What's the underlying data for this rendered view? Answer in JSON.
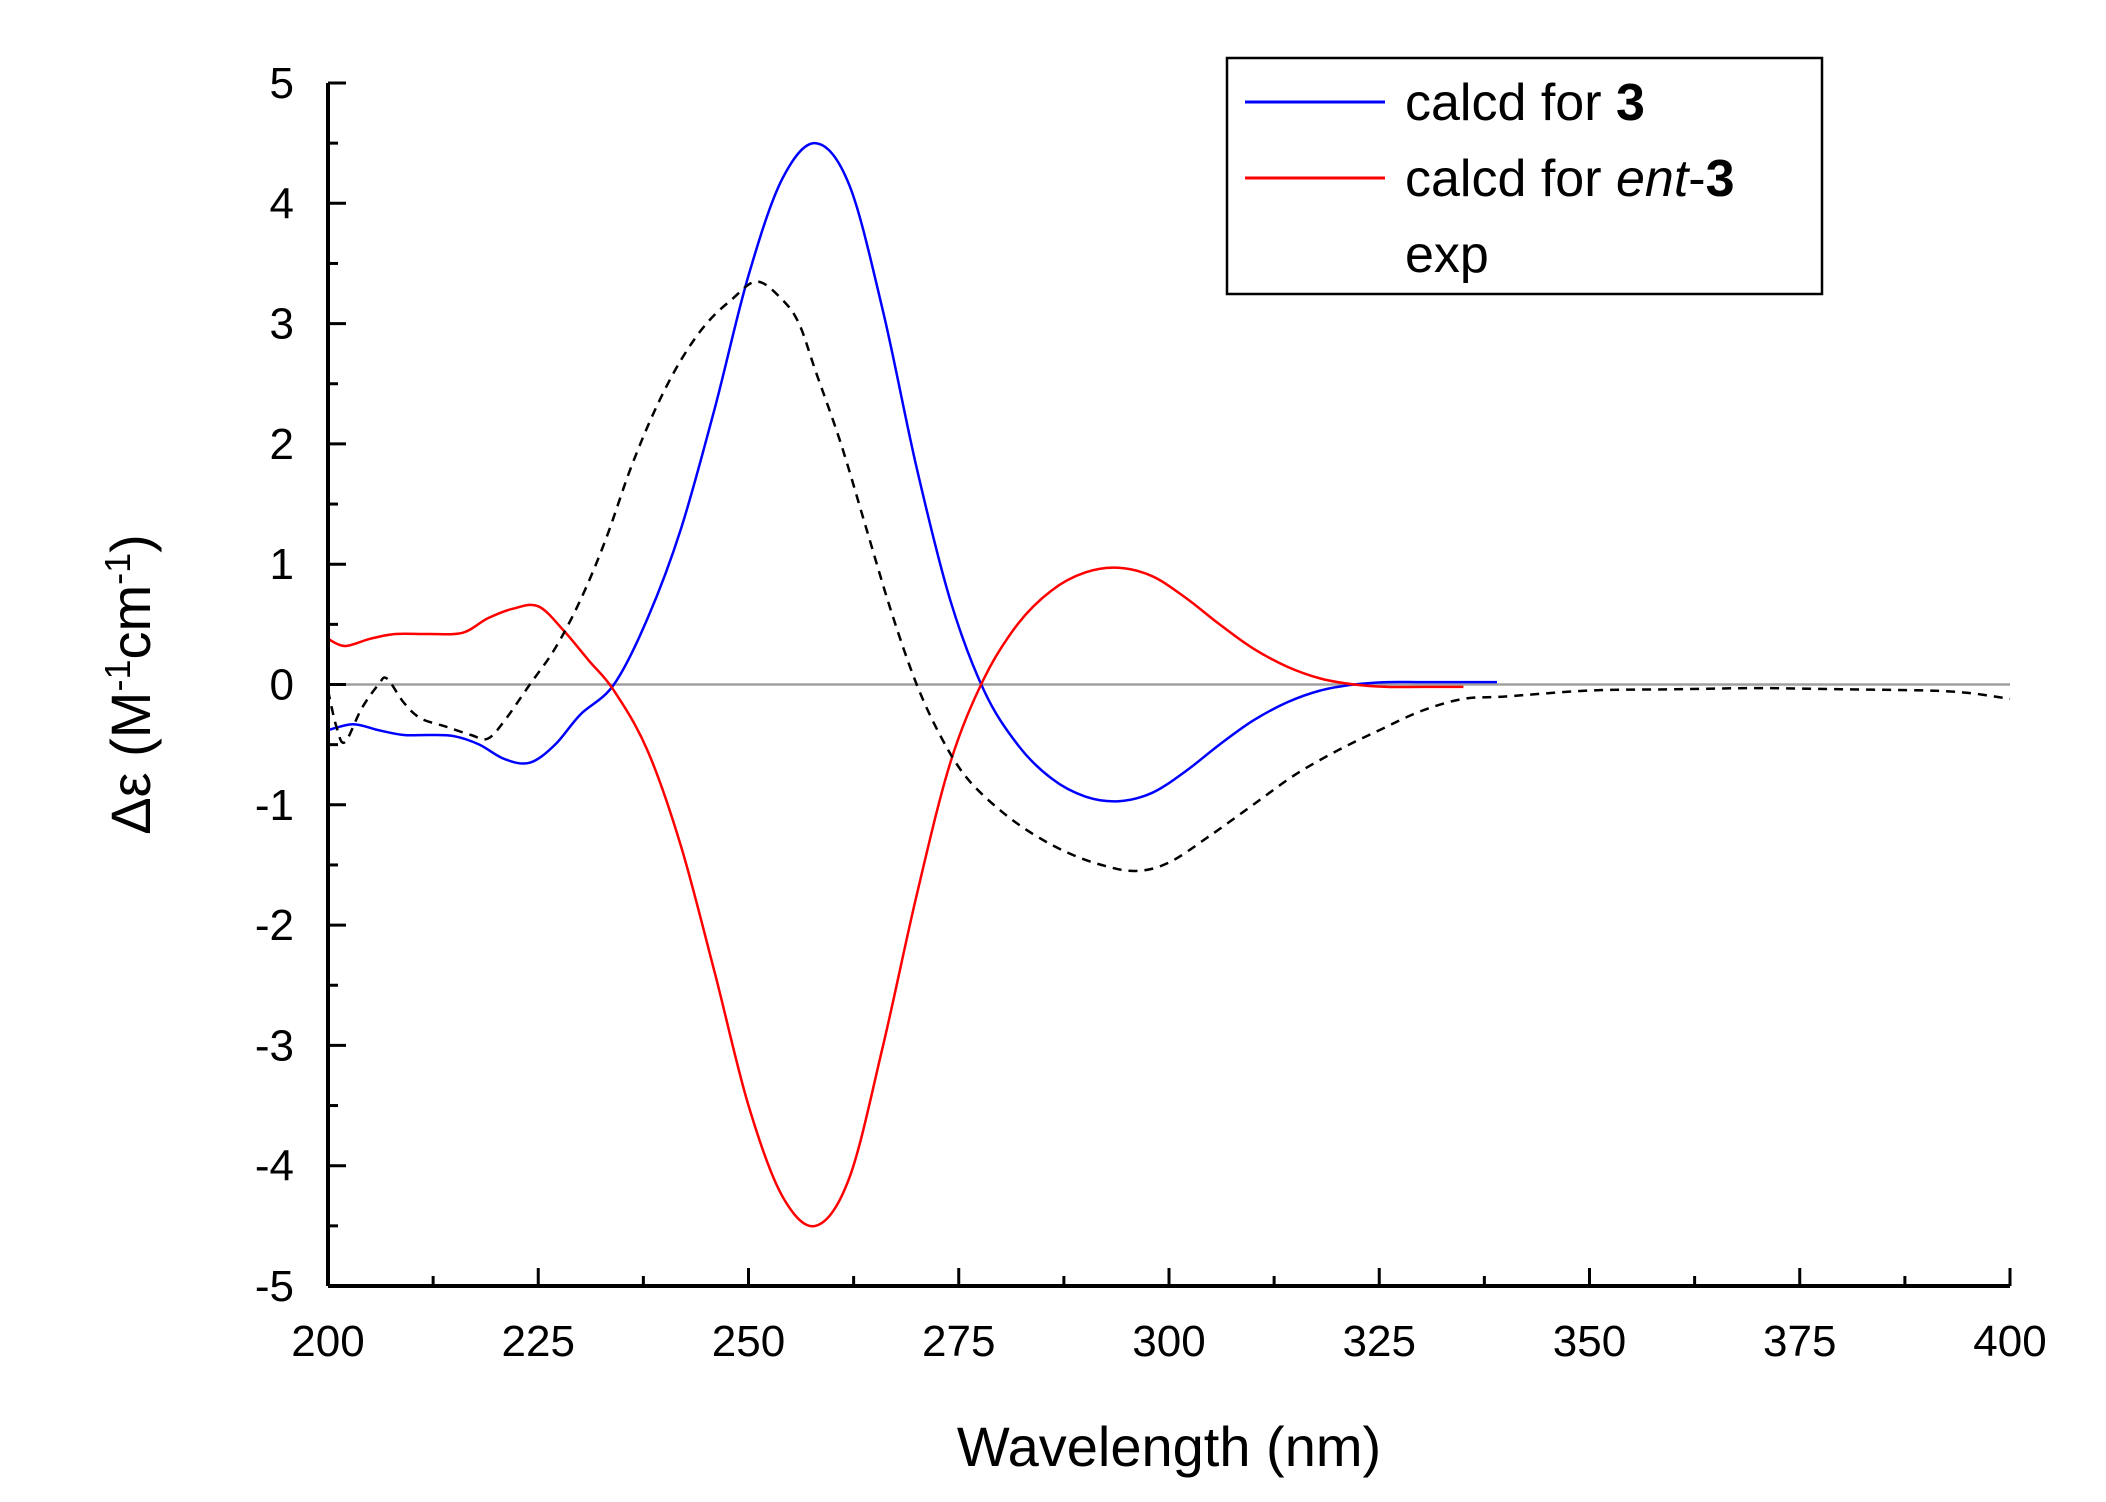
{
  "chart_data": {
    "type": "line",
    "xlabel": "Wavelength (nm)",
    "ylabel": {
      "prefix": "Δε (M",
      "sup1": "-1",
      "mid": "cm",
      "sup2": "-1",
      "suffix": ")"
    },
    "xlim": [
      200,
      400
    ],
    "ylim": [
      -5,
      5
    ],
    "x_ticks": [
      "200",
      "225",
      "250",
      "275",
      "300",
      "325",
      "350",
      "375",
      "400"
    ],
    "y_ticks": [
      "5",
      "4",
      "3",
      "2",
      "1",
      "0",
      "-1",
      "-2",
      "-3",
      "-4",
      "-5"
    ],
    "zero_line": true,
    "legend_position": "top-right",
    "colors": {
      "calcd3": "#0000ff",
      "ent3": "#ff0000",
      "exp": "#000000",
      "zero": "#a0a0a0"
    },
    "series": [
      {
        "name": "calcd for 3",
        "legend": {
          "text": "calcd for ",
          "bold": "3"
        },
        "style": "solid",
        "x": [
          200,
          203,
          206,
          209,
          212,
          215,
          218,
          221,
          224,
          227,
          230,
          234,
          238,
          242,
          246,
          250,
          254,
          258,
          262,
          266,
          270,
          274,
          278,
          282,
          286,
          290,
          294,
          298,
          302,
          306,
          310,
          314,
          318,
          322,
          326,
          330,
          335,
          339
        ],
        "values": [
          -0.38,
          -0.33,
          -0.38,
          -0.42,
          -0.42,
          -0.43,
          -0.5,
          -0.62,
          -0.65,
          -0.5,
          -0.25,
          0.0,
          0.55,
          1.3,
          2.3,
          3.4,
          4.2,
          4.5,
          4.15,
          3.1,
          1.8,
          0.7,
          -0.05,
          -0.5,
          -0.78,
          -0.93,
          -0.97,
          -0.9,
          -0.72,
          -0.5,
          -0.3,
          -0.15,
          -0.05,
          0.0,
          0.02,
          0.02,
          0.02,
          0.02
        ]
      },
      {
        "name": "calcd for ent-3",
        "legend": {
          "text": "calcd for ",
          "italic": "ent",
          "suffix": "-",
          "bold": "3"
        },
        "style": "solid",
        "x": [
          200,
          202,
          205,
          208,
          212,
          216,
          219,
          222,
          225,
          228,
          231,
          234,
          238,
          242,
          246,
          250,
          254,
          258,
          262,
          266,
          270,
          274,
          278,
          282,
          286,
          290,
          294,
          298,
          302,
          306,
          310,
          314,
          318,
          322,
          326,
          330,
          335
        ],
        "values": [
          0.38,
          0.32,
          0.38,
          0.42,
          0.42,
          0.43,
          0.55,
          0.63,
          0.65,
          0.45,
          0.2,
          -0.05,
          -0.55,
          -1.35,
          -2.4,
          -3.5,
          -4.25,
          -4.5,
          -4.1,
          -3.0,
          -1.75,
          -0.65,
          0.05,
          0.5,
          0.78,
          0.93,
          0.97,
          0.9,
          0.72,
          0.5,
          0.3,
          0.15,
          0.05,
          0.0,
          -0.02,
          -0.02,
          -0.02
        ]
      },
      {
        "name": "exp",
        "legend": {
          "text": "exp"
        },
        "style": "dashed",
        "x": [
          200,
          201,
          202,
          204,
          206,
          207,
          209,
          211,
          214,
          217,
          219,
          221,
          224,
          227,
          230,
          233,
          236,
          239,
          242,
          245,
          248,
          251,
          254,
          256,
          258,
          261,
          264,
          267,
          270,
          273,
          276,
          280,
          284,
          288,
          292,
          296,
          300,
          305,
          310,
          315,
          320,
          325,
          330,
          335,
          340,
          350,
          360,
          370,
          380,
          390,
          395,
          400
        ],
        "values": [
          -0.05,
          -0.35,
          -0.48,
          -0.2,
          0.0,
          0.05,
          -0.15,
          -0.28,
          -0.35,
          -0.42,
          -0.45,
          -0.3,
          0.0,
          0.3,
          0.7,
          1.2,
          1.8,
          2.3,
          2.7,
          3.0,
          3.2,
          3.35,
          3.2,
          3.0,
          2.6,
          2.0,
          1.3,
          0.6,
          0.0,
          -0.45,
          -0.78,
          -1.05,
          -1.25,
          -1.4,
          -1.5,
          -1.55,
          -1.48,
          -1.25,
          -1.0,
          -0.75,
          -0.55,
          -0.38,
          -0.22,
          -0.12,
          -0.1,
          -0.05,
          -0.04,
          -0.03,
          -0.04,
          -0.05,
          -0.07,
          -0.12
        ]
      }
    ]
  }
}
